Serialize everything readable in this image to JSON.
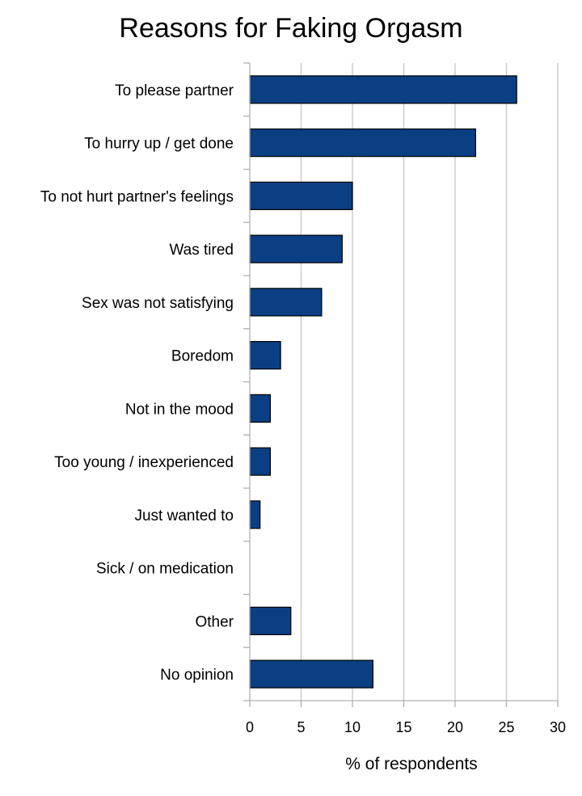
{
  "chart_data": {
    "type": "bar",
    "orientation": "horizontal",
    "title": "Reasons for Faking Orgasm",
    "xlabel": "% of respondents",
    "ylabel": "",
    "categories": [
      "To please partner",
      "To hurry up / get done",
      "To not hurt partner's feelings",
      "Was tired",
      "Sex was not satisfying",
      "Boredom",
      "Not in the mood",
      "Too young / inexperienced",
      "Just wanted to",
      "Sick / on medication",
      "Other",
      "No opinion"
    ],
    "values": [
      26,
      22,
      10,
      9,
      7,
      3,
      2,
      2,
      1,
      0,
      4,
      12
    ],
    "xlim": [
      0,
      30
    ],
    "x_ticks": [
      0,
      5,
      10,
      15,
      20,
      25,
      30
    ],
    "grid": "vertical",
    "legend": "none",
    "bar_color": "#0b3f84",
    "bar_edge_color": "#000000",
    "grid_color": "#c6c6c6"
  }
}
